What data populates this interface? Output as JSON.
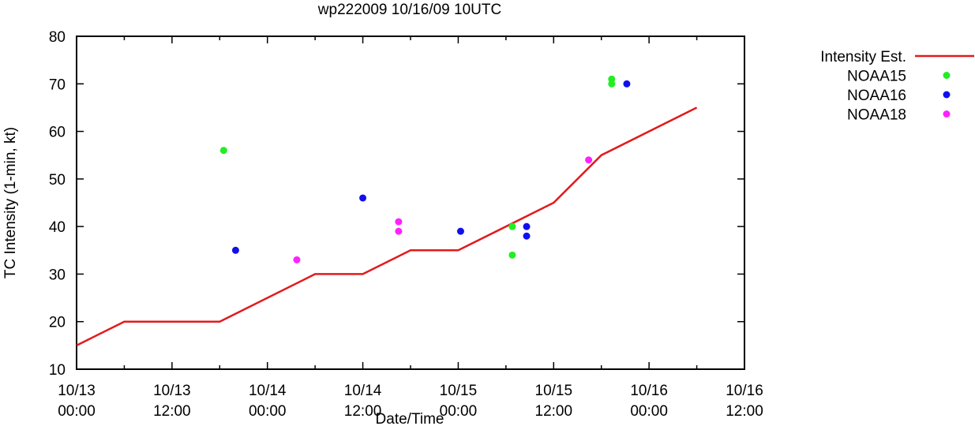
{
  "chart_data": {
    "type": "line+scatter",
    "title": "wp222009 10/16/09 10UTC",
    "xlabel": "Date/Time",
    "ylabel": "TC Intensity (1-min, kt)",
    "x_unit": "hours since 10/13 00:00",
    "xlim": [
      0,
      84
    ],
    "ylim": [
      10,
      80
    ],
    "y_ticks": [
      10,
      20,
      30,
      40,
      50,
      60,
      70,
      80
    ],
    "x_ticks": [
      {
        "x": 0,
        "line1": "10/13",
        "line2": "00:00"
      },
      {
        "x": 12,
        "line1": "10/13",
        "line2": "12:00"
      },
      {
        "x": 24,
        "line1": "10/14",
        "line2": "00:00"
      },
      {
        "x": 36,
        "line1": "10/14",
        "line2": "12:00"
      },
      {
        "x": 48,
        "line1": "10/15",
        "line2": "00:00"
      },
      {
        "x": 60,
        "line1": "10/15",
        "line2": "12:00"
      },
      {
        "x": 72,
        "line1": "10/16",
        "line2": "00:00"
      },
      {
        "x": 84,
        "line1": "10/16",
        "line2": "12:00"
      }
    ],
    "series": [
      {
        "name": "Intensity Est.",
        "kind": "line",
        "color": "#e31a1c",
        "x": [
          0,
          6,
          18,
          30,
          36,
          42,
          48,
          60,
          66,
          78
        ],
        "y": [
          15,
          20,
          20,
          30,
          30,
          35,
          35,
          45,
          55,
          65
        ]
      },
      {
        "name": "NOAA15",
        "kind": "scatter",
        "color": "#22ee22",
        "x": [
          18.5,
          54.8,
          54.8,
          67.3,
          67.3
        ],
        "y": [
          56,
          40,
          34,
          71,
          70
        ]
      },
      {
        "name": "NOAA16",
        "kind": "scatter",
        "color": "#1010ee",
        "x": [
          20.0,
          36.0,
          48.3,
          56.6,
          56.6,
          69.2
        ],
        "y": [
          35,
          46,
          39,
          40,
          38,
          70
        ]
      },
      {
        "name": "NOAA18",
        "kind": "scatter",
        "color": "#ff22ff",
        "x": [
          27.7,
          40.5,
          40.5,
          64.4
        ],
        "y": [
          33,
          41,
          39,
          54
        ]
      }
    ],
    "legend": {
      "position": "top-right outside",
      "entries": [
        "Intensity Est.",
        "NOAA15",
        "NOAA16",
        "NOAA18"
      ]
    }
  }
}
